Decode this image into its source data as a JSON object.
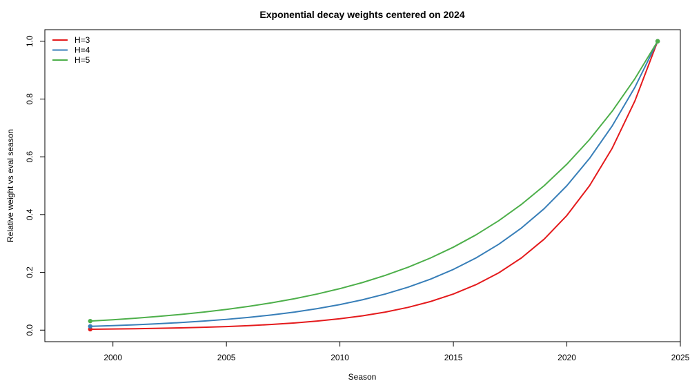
{
  "chart_data": {
    "type": "line",
    "title": "Exponential decay weights centered on 2024",
    "xlabel": "Season",
    "ylabel": "Relative weight vs eval season",
    "xlim": [
      1997,
      2025
    ],
    "ylim": [
      -0.04,
      1.04
    ],
    "x_ticks": [
      2000,
      2005,
      2010,
      2015,
      2020,
      2025
    ],
    "y_ticks": [
      0.0,
      0.2,
      0.4,
      0.6,
      0.8,
      1.0
    ],
    "y_tick_labels": [
      "0.0",
      "0.2",
      "0.4",
      "0.6",
      "0.8",
      "1.0"
    ],
    "grid": false,
    "legend_position": "top-left",
    "x": [
      1999,
      2000,
      2001,
      2002,
      2003,
      2004,
      2005,
      2006,
      2007,
      2008,
      2009,
      2010,
      2011,
      2012,
      2013,
      2014,
      2015,
      2016,
      2017,
      2018,
      2019,
      2020,
      2021,
      2022,
      2023,
      2024
    ],
    "series": [
      {
        "name": "H=3",
        "color": "#e41a1c",
        "values": [
          0.0031,
          0.0039,
          0.0049,
          0.0062,
          0.0078,
          0.0098,
          0.0123,
          0.0156,
          0.0197,
          0.0248,
          0.0313,
          0.0394,
          0.0496,
          0.0625,
          0.0787,
          0.0992,
          0.125,
          0.1575,
          0.1984,
          0.25,
          0.315,
          0.3969,
          0.5,
          0.63,
          0.7937,
          1.0
        ]
      },
      {
        "name": "H=4",
        "color": "#377eb8",
        "values": [
          0.0131,
          0.0156,
          0.0186,
          0.0221,
          0.0263,
          0.0313,
          0.0372,
          0.0442,
          0.0526,
          0.0625,
          0.0743,
          0.0884,
          0.1051,
          0.125,
          0.1487,
          0.1768,
          0.2102,
          0.25,
          0.2973,
          0.3536,
          0.4204,
          0.5,
          0.5946,
          0.7071,
          0.8409,
          1.0
        ]
      },
      {
        "name": "H=5",
        "color": "#4daf4a",
        "values": [
          0.0313,
          0.0359,
          0.0412,
          0.0474,
          0.0544,
          0.0625,
          0.0718,
          0.0825,
          0.0947,
          0.1088,
          0.125,
          0.1436,
          0.1649,
          0.1895,
          0.2176,
          0.25,
          0.2872,
          0.3299,
          0.3789,
          0.4353,
          0.5,
          0.5743,
          0.6598,
          0.7579,
          0.8706,
          1.0
        ]
      }
    ],
    "endpoint_markers": true
  }
}
